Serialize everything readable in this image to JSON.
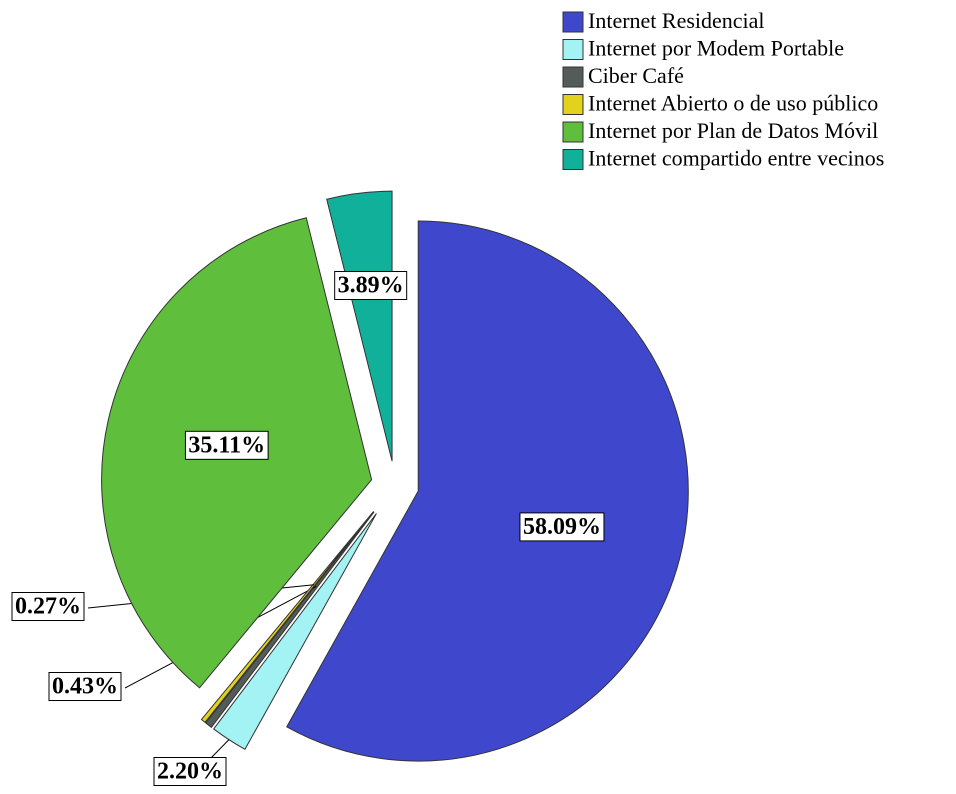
{
  "chart_data": {
    "type": "pie",
    "categories": [
      "Internet Residencial",
      "Internet por Modem Portable",
      "Ciber Café",
      "Internet Abierto o de uso público",
      "Internet por Plan de Datos Móvil",
      "Internet compartido entre vecinos"
    ],
    "values": [
      58.09,
      2.2,
      0.43,
      0.27,
      35.11,
      3.89
    ],
    "value_labels": [
      "58.09%",
      "2.20%",
      "0.43%",
      "0.27%",
      "35.11%",
      "3.89%"
    ],
    "colors": [
      "#3f48cc",
      "#a3f3f5",
      "#545c5a",
      "#e2d21c",
      "#5fbe3b",
      "#10b09b"
    ],
    "legend": "top-right"
  }
}
